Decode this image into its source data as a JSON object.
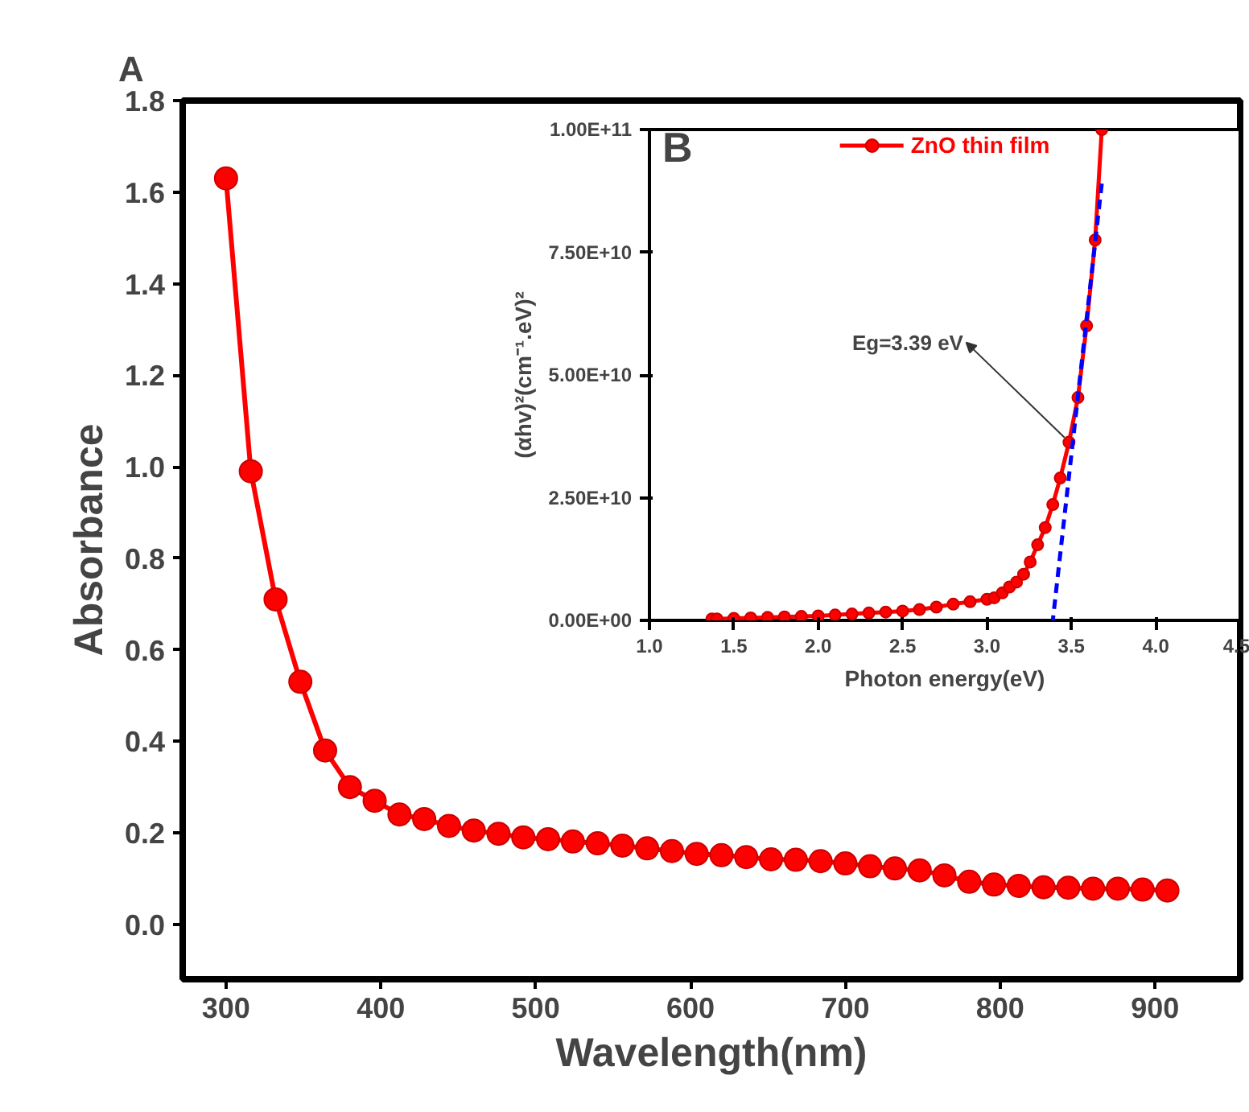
{
  "chart_data": [
    {
      "type": "line",
      "title": "A",
      "xlabel": "Wavelength(nm)",
      "ylabel": "Absorbance",
      "marker": "circle",
      "grid": false,
      "legend": false,
      "x": [
        300,
        316,
        332,
        348,
        364,
        380,
        396,
        412,
        428,
        444,
        460,
        476,
        492,
        508,
        524,
        540,
        556,
        572,
        588,
        604,
        620,
        636,
        652,
        668,
        684,
        700,
        716,
        732,
        748,
        764,
        780,
        796,
        812,
        828,
        844,
        860,
        876,
        892,
        908
      ],
      "series": [
        {
          "color": "#ff0000",
          "values": [
            1.63,
            0.99,
            0.71,
            0.53,
            0.38,
            0.3,
            0.27,
            0.24,
            0.23,
            0.215,
            0.205,
            0.198,
            0.19,
            0.186,
            0.181,
            0.177,
            0.172,
            0.166,
            0.16,
            0.154,
            0.151,
            0.147,
            0.142,
            0.141,
            0.138,
            0.133,
            0.127,
            0.122,
            0.118,
            0.107,
            0.093,
            0.087,
            0.084,
            0.081,
            0.08,
            0.078,
            0.078,
            0.076,
            0.074
          ]
        }
      ],
      "xlim": [
        272,
        955
      ],
      "ylim": [
        -0.12,
        1.8
      ],
      "xticks": [
        300,
        400,
        500,
        600,
        700,
        800,
        900
      ],
      "yticks": [
        {
          "value": 0,
          "label": "0.0"
        },
        {
          "value": 0.2,
          "label": "0.2"
        },
        {
          "value": 0.4,
          "label": "0.4"
        },
        {
          "value": 0.6,
          "label": "0.6"
        },
        {
          "value": 0.8,
          "label": "0.8"
        },
        {
          "value": 1.0,
          "label": "1.0"
        },
        {
          "value": 1.2,
          "label": "1.2"
        },
        {
          "value": 1.4,
          "label": "1.4"
        },
        {
          "value": 1.6,
          "label": "1.6"
        },
        {
          "value": 1.8,
          "label": "1.8"
        }
      ]
    },
    {
      "type": "line",
      "title": "B",
      "xlabel": "Photon energy(eV)",
      "ylabel": "(αhv)²(cm⁻¹.eV)²",
      "grid": false,
      "legend": "top",
      "series": [
        {
          "name": "ZnO thin film",
          "color": "#ff0000",
          "marker": "circle",
          "x": [
            1.37,
            1.4,
            1.5,
            1.6,
            1.7,
            1.8,
            1.9,
            2.0,
            2.1,
            2.2,
            2.3,
            2.4,
            2.5,
            2.6,
            2.7,
            2.8,
            2.9,
            3.0,
            3.043,
            3.091,
            3.133,
            3.175,
            3.217,
            3.256,
            3.3,
            3.345,
            3.39,
            3.434,
            3.486,
            3.539,
            3.59,
            3.641,
            3.68
          ],
          "values": [
            300000000.0,
            300000000.0,
            400000000.0,
            500000000.0,
            600000000.0,
            700000000.0,
            800000000.0,
            900000000.0,
            1100000000.0,
            1300000000.0,
            1500000000.0,
            1700000000.0,
            1900000000.0,
            2200000000.0,
            2700000000.0,
            3300000000.0,
            3800000000.0,
            4300000000.0,
            4600000000.0,
            5600000000.0,
            6800000000.0,
            7800000000.0,
            9400000000.0,
            11900000000.0,
            15400000000.0,
            18900000000.0,
            23600000000.0,
            29000000000.0,
            36300000000.0,
            45400000000.0,
            60000000000.0,
            77500000000.0,
            100000000000.0
          ]
        },
        {
          "color": "#0000ff",
          "marker": "none",
          "line_style": "dashed",
          "x": [
            3.68,
            3.39
          ],
          "values": [
            89000000000.0,
            0
          ]
        }
      ],
      "annotations": [
        {
          "text": "Eg=3.39 eV",
          "x": 3.486,
          "y": 36300000000.0
        }
      ],
      "xlim": [
        1.0,
        4.5
      ],
      "ylim": [
        0,
        100000000000.0
      ],
      "xticks": [
        {
          "value": 1.0,
          "label": "1.0"
        },
        {
          "value": 1.5,
          "label": "1.5"
        },
        {
          "value": 2.0,
          "label": "2.0"
        },
        {
          "value": 2.5,
          "label": "2.5"
        },
        {
          "value": 3.0,
          "label": "3.0"
        },
        {
          "value": 3.5,
          "label": "3.5"
        },
        {
          "value": 4.0,
          "label": "4.0"
        },
        {
          "value": 4.5,
          "label": "4.5"
        }
      ],
      "yticks": [
        {
          "value": 0,
          "label": "0.00E+00"
        },
        {
          "value": 25000000000.0,
          "label": "2.50E+10"
        },
        {
          "value": 50000000000.0,
          "label": "5.00E+10"
        },
        {
          "value": 75000000000.0,
          "label": "7.50E+10"
        },
        {
          "value": 100000000000.0,
          "label": "1.00E+11"
        }
      ]
    }
  ]
}
